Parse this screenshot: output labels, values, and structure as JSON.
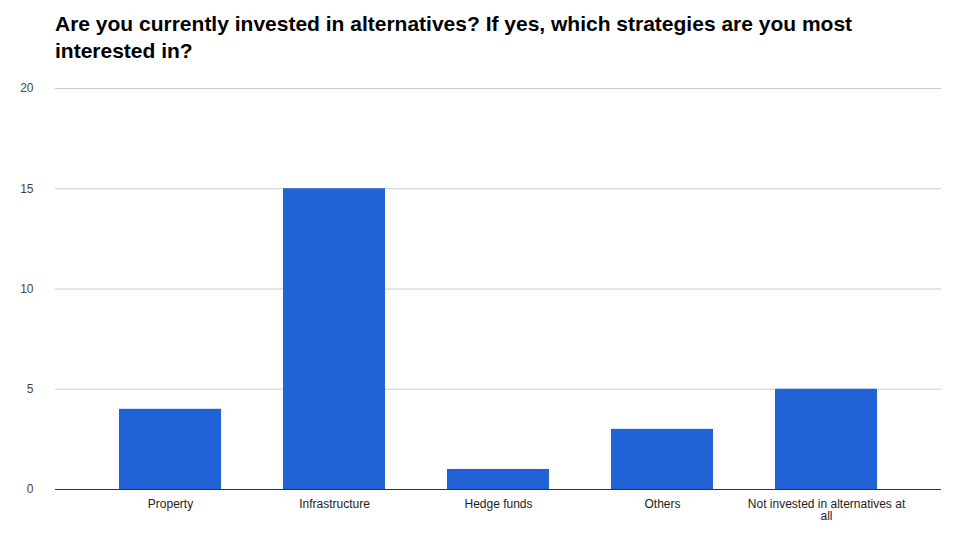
{
  "chart_data": {
    "type": "bar",
    "title": "Are you currently invested in alternatives? If yes, which strategies are you most interested in?",
    "categories": [
      "Property",
      "Infrastructure",
      "Hedge funds",
      "Others",
      "Not invested in alternatives at all"
    ],
    "values": [
      4,
      15,
      1,
      3,
      5
    ],
    "color": "#2163d6",
    "ylim": [
      0,
      20
    ],
    "yticks": [
      0,
      5,
      10,
      15,
      20
    ],
    "grid": true
  }
}
